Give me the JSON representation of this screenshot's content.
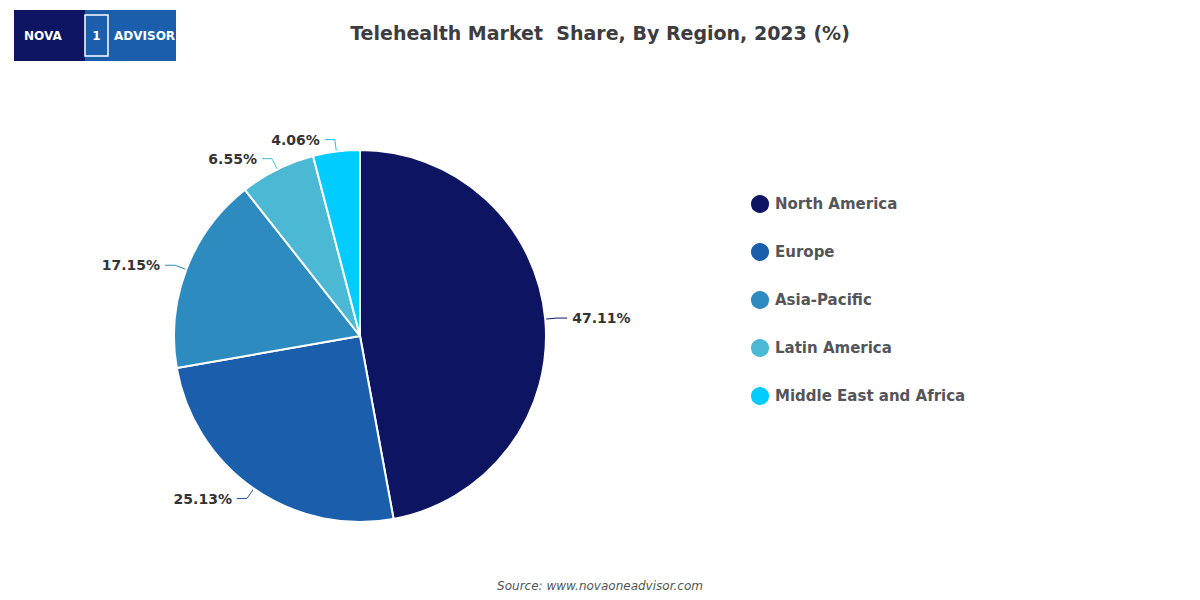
{
  "chart_data": {
    "type": "pie",
    "title": "Telehealth Market  Share, By Region, 2023 (%)",
    "categories": [
      "North America",
      "Europe",
      "Asia-Pacific",
      "Latin America",
      "Middle East and Africa"
    ],
    "values": [
      47.11,
      25.13,
      17.15,
      6.55,
      4.06
    ],
    "value_labels": [
      "47.11%",
      "25.13%",
      "17.15%",
      "6.55%",
      "4.06%"
    ],
    "colors": [
      "#0d1461",
      "#1b5fac",
      "#2e8bbf",
      "#4bb8d4",
      "#00ccff"
    ],
    "data_labels": true,
    "legend": "right",
    "annotations": [
      "NOVA",
      "1",
      "ADVISOR",
      "Source: www.novaoneadvisor.com"
    ]
  }
}
